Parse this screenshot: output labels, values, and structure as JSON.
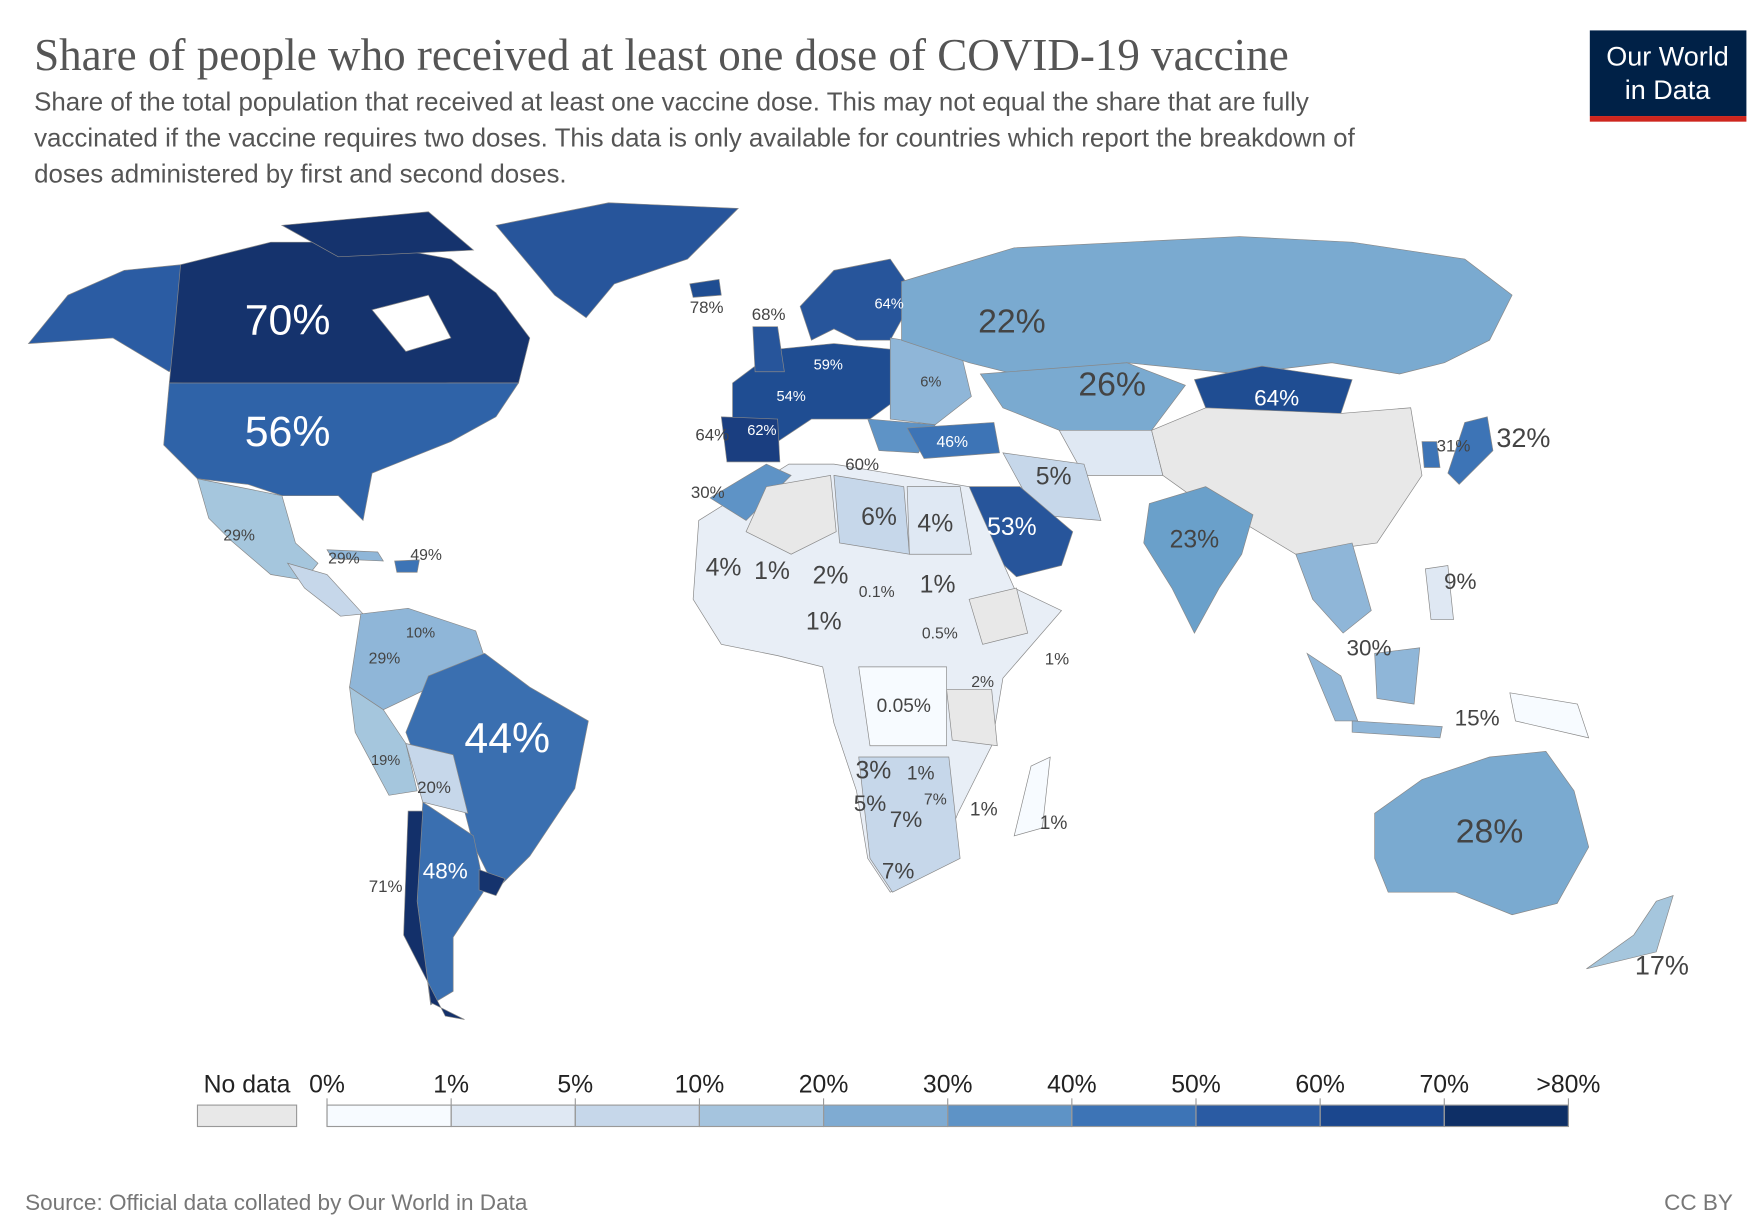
{
  "header": {
    "title": "Share of people who received at least one dose of COVID-19 vaccine",
    "subtitle": [
      "Share of the total population that received at least one vaccine dose. This may not equal the share that are fully",
      "vaccinated if the vaccine requires two doses. This data is only available for countries which report the breakdown of",
      "doses administered by first and second doses."
    ],
    "logo": [
      "Our World",
      "in Data"
    ]
  },
  "map": {
    "labels": [
      "70%",
      "56%",
      "22%",
      "26%",
      "64%",
      "44%",
      "48%",
      "71%",
      "28%",
      "17%",
      "32%",
      "31%",
      "23%",
      "53%",
      "5%",
      "46%",
      "6%",
      "64%",
      "59%",
      "54%",
      "62%",
      "64%",
      "78%",
      "68%",
      "60%",
      "30%",
      "6%",
      "4%",
      "4%",
      "1%",
      "2%",
      "0.1%",
      "1%",
      "1%",
      "0.5%",
      "1%",
      "2%",
      "0.05%",
      "3%",
      "1%",
      "5%",
      "7%",
      "7%",
      "1%",
      "1%",
      "7%",
      "29%",
      "29%",
      "49%",
      "10%",
      "29%",
      "19%",
      "20%",
      "9%",
      "30%",
      "15%"
    ]
  },
  "legend": {
    "no_data": "No data",
    "no_data_color": "#e8e8e8",
    "ticks": [
      "0%",
      "1%",
      "5%",
      "10%",
      "20%",
      "30%",
      "40%",
      "50%",
      "60%",
      "70%",
      ">80%"
    ],
    "colors": [
      "#f7fbff",
      "#dfe8f3",
      "#c6d7ea",
      "#a5c4de",
      "#7fabd2",
      "#5e93c6",
      "#3d74b6",
      "#2a5ba3",
      "#1b478e",
      "#0e2f66"
    ]
  },
  "footer": {
    "source": "Source: Official data collated by Our World in Data",
    "license": "CC BY"
  }
}
